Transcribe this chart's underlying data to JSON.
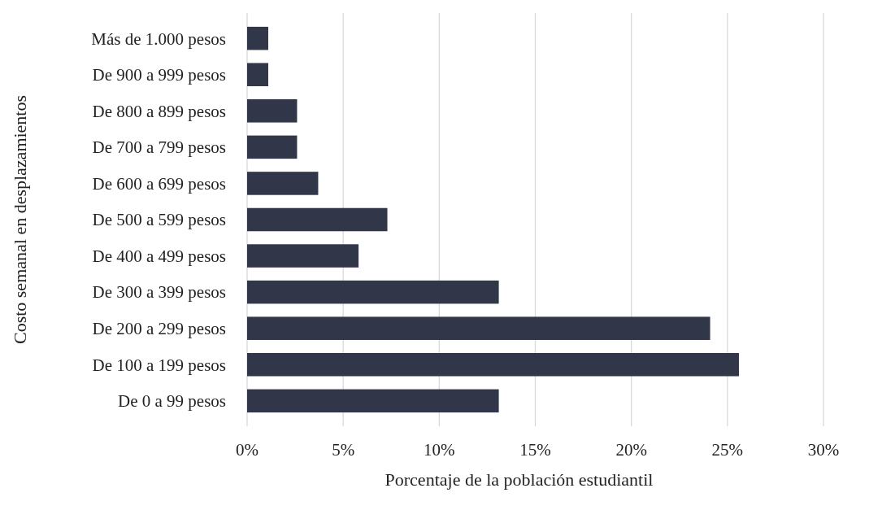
{
  "chart_data": {
    "type": "bar",
    "orientation": "horizontal",
    "xlabel": "Porcentaje de la población estudiantil",
    "ylabel": "Costo semanal en desplazamientos",
    "categories": [
      "Más de 1.000 pesos",
      "De 900 a 999 pesos",
      "De 800 a 899 pesos",
      "De 700 a 799 pesos",
      "De 600 a 699 pesos",
      "De 500 a 599 pesos",
      "De 400 a 499 pesos",
      "De 300 a 399 pesos",
      "De 200 a 299 pesos",
      "De 100 a 199 pesos",
      "De 0 a 99 pesos"
    ],
    "values": [
      1.1,
      1.1,
      2.6,
      2.6,
      3.7,
      7.3,
      5.8,
      13.1,
      24.1,
      25.6,
      13.1
    ],
    "color": "#323649",
    "xlim": [
      0,
      30
    ],
    "xticks": [
      {
        "value": 0,
        "label": "0%"
      },
      {
        "value": 5,
        "label": "5%"
      },
      {
        "value": 10,
        "label": "10%"
      },
      {
        "value": 15,
        "label": "15%"
      },
      {
        "value": 20,
        "label": "20%"
      },
      {
        "value": 25,
        "label": "25%"
      },
      {
        "value": 30,
        "label": "30%"
      }
    ],
    "grid": "x"
  }
}
